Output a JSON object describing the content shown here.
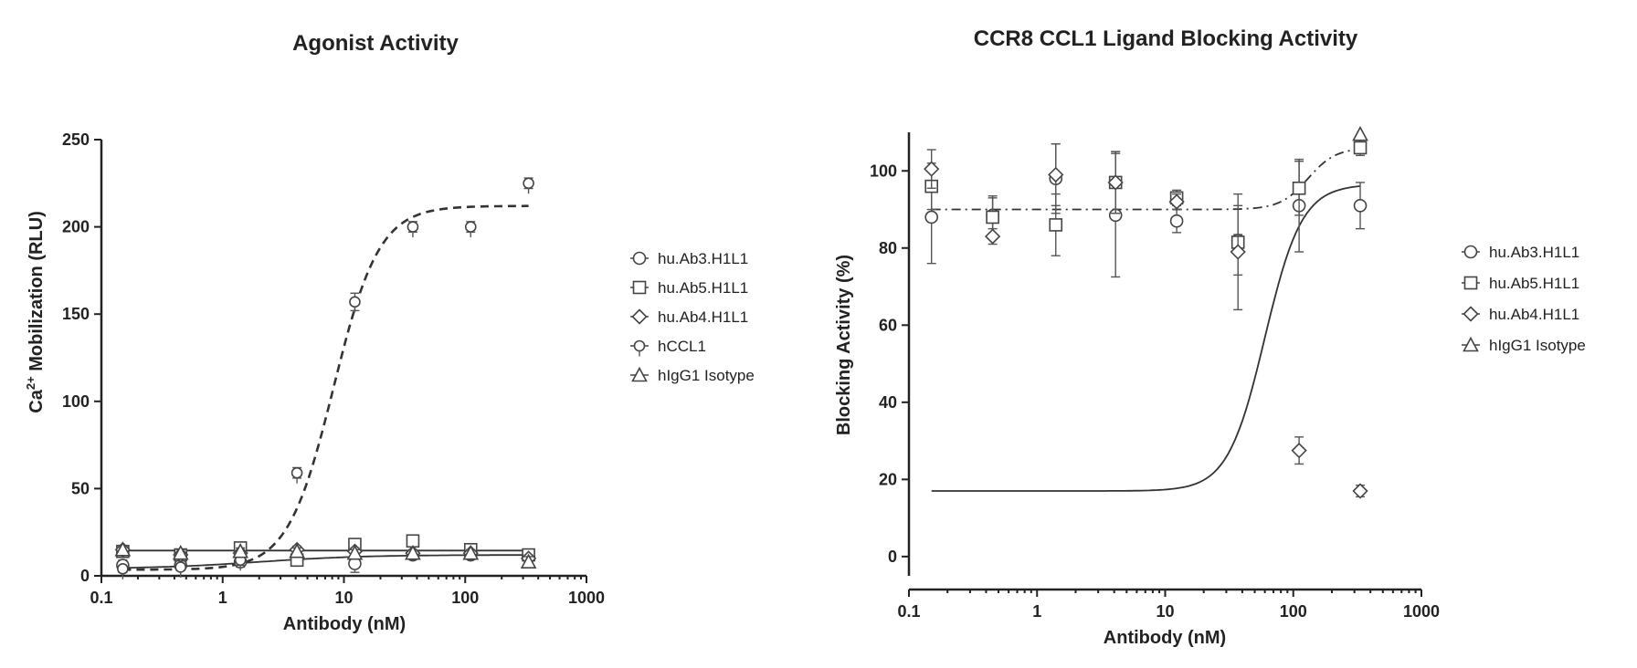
{
  "chart_data": [
    {
      "type": "scatter",
      "title": "Agonist Activity",
      "xlabel": "Antibody (nM)",
      "ylabel_html": "Ca",
      "ylabel_sup": "2+",
      "ylabel_rest": " Mobilization (RLU)",
      "xscale": "log",
      "xlim": [
        0.1,
        1000
      ],
      "ylim": [
        0,
        250
      ],
      "xticks": [
        0.1,
        1,
        10,
        100,
        1000
      ],
      "xtick_labels": [
        "0.1",
        "1",
        "10",
        "100",
        "1000"
      ],
      "yticks": [
        0,
        50,
        100,
        150,
        200,
        250
      ],
      "ytick_labels": [
        "0",
        "50",
        "100",
        "150",
        "200",
        "250"
      ],
      "legend_position": "right",
      "series": [
        {
          "name": "hu.Ab3.H1L1",
          "marker": "circle",
          "x": [
            0.15,
            0.45,
            1.4,
            4.1,
            12.3,
            37,
            111,
            333
          ],
          "y": [
            6,
            6,
            8,
            9,
            7,
            12,
            12,
            11
          ],
          "err": [
            3,
            2,
            3,
            3,
            5,
            2,
            2,
            2
          ],
          "fit": "hill",
          "fit_params": {
            "bottom": 4,
            "top": 12,
            "ec50": 2,
            "hill": 1
          },
          "fit_style": "solid"
        },
        {
          "name": "hu.Ab5.H1L1",
          "marker": "square",
          "x": [
            0.15,
            0.45,
            1.4,
            4.1,
            12.3,
            37,
            111,
            333
          ],
          "y": [
            14,
            12,
            16,
            9,
            18,
            20,
            15,
            12
          ],
          "err": [
            2,
            2,
            2,
            3,
            2,
            3,
            2,
            2
          ]
        },
        {
          "name": "hu.Ab4.H1L1",
          "marker": "diamond",
          "x": [
            0.15,
            0.45,
            1.4,
            4.1,
            12.3,
            37,
            111,
            333
          ],
          "y": [
            15,
            12,
            13,
            15,
            14,
            13,
            13,
            10
          ],
          "err": [
            2,
            2,
            2,
            2,
            2,
            2,
            2,
            2
          ],
          "fit": "flat",
          "fit_params": {
            "value": 14.5
          },
          "fit_style": "solid"
        },
        {
          "name": "hCCL1",
          "marker": "flower",
          "x": [
            0.15,
            0.45,
            1.4,
            4.1,
            12.3,
            37,
            111,
            333
          ],
          "y": [
            4,
            5,
            9,
            59,
            157,
            200,
            200,
            225
          ],
          "err": [
            2,
            2,
            3,
            3,
            5,
            3,
            3,
            3
          ],
          "fit": "hill",
          "fit_params": {
            "bottom": 3.5,
            "top": 212,
            "ec50": 8.2,
            "hill": 2.3
          },
          "fit_style": "dashed"
        },
        {
          "name": "hIgG1 Isotype",
          "marker": "triangle",
          "x": [
            0.15,
            0.45,
            1.4,
            4.1,
            12.3,
            37,
            111,
            333
          ],
          "y": [
            15,
            13,
            14,
            14,
            13,
            13,
            13,
            8
          ],
          "err": [
            2,
            2,
            2,
            2,
            2,
            2,
            2,
            3
          ]
        }
      ]
    },
    {
      "type": "scatter",
      "title": "CCR8 CCL1 Ligand Blocking Activity",
      "xlabel": "Antibody (nM)",
      "ylabel": "Blocking Activity (%)",
      "xscale": "log",
      "xlim": [
        0.1,
        1000
      ],
      "ylim": [
        -5,
        110
      ],
      "xticks": [
        0.1,
        1,
        10,
        100,
        1000
      ],
      "xtick_labels": [
        "0.1",
        "1",
        "10",
        "100",
        "1000"
      ],
      "yticks": [
        0,
        20,
        40,
        60,
        80,
        100
      ],
      "ytick_labels": [
        "0",
        "20",
        "40",
        "60",
        "80",
        "100"
      ],
      "legend_position": "right",
      "series": [
        {
          "name": "hu.Ab3.H1L1",
          "marker": "circle",
          "x": [
            0.15,
            0.45,
            1.4,
            4.1,
            12.3,
            37,
            111,
            333
          ],
          "y": [
            88,
            88.5,
            98,
            88.5,
            87,
            82,
            91,
            91
          ],
          "err": [
            12,
            5,
            9,
            16,
            3,
            9,
            12,
            6
          ]
        },
        {
          "name": "hu.Ab5.H1L1",
          "marker": "square",
          "x": [
            0.15,
            0.45,
            1.4,
            4.1,
            12.3,
            37,
            111,
            333
          ],
          "y": [
            96,
            88,
            86,
            97,
            93,
            81.5,
            95.5,
            106
          ],
          "err": [
            6,
            5,
            8,
            8,
            2,
            2,
            7,
            2
          ],
          "fit": "hill",
          "fit_params": {
            "bottom": 90,
            "top": 106,
            "ec50": 130,
            "hill": 4
          },
          "fit_style": "dashdot"
        },
        {
          "name": "hu.Ab4.H1L1",
          "marker": "diamond",
          "x": [
            0.15,
            0.45,
            1.4,
            4.1,
            12.3,
            37,
            111,
            333
          ],
          "y": [
            100.5,
            83,
            99,
            97,
            92,
            79,
            27.5,
            17
          ],
          "err": [
            5,
            2,
            8,
            8,
            2,
            15,
            3.5,
            1.5
          ],
          "fit": "hill",
          "fit_params": {
            "bottom": 17,
            "top": 96.5,
            "ec50": 60,
            "hill": 3
          },
          "fit_style": "solid"
        },
        {
          "name": "hIgG1 Isotype",
          "marker": "triangle",
          "x": [
            333
          ],
          "y": [
            109.5
          ],
          "err": [
            0
          ]
        }
      ]
    }
  ]
}
